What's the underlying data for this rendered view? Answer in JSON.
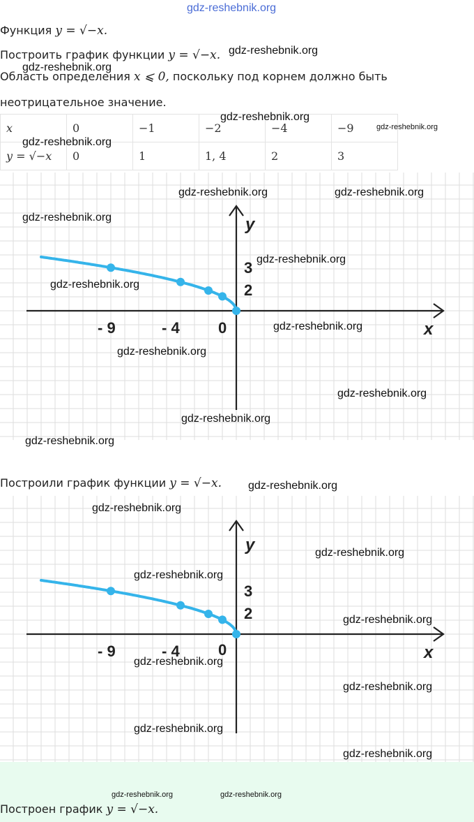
{
  "header_watermark": "gdz-reshebnik.org",
  "watermark": "gdz-reshebnik.org",
  "intro": {
    "func_label": "Функция",
    "func_formula": "y = √−x.",
    "task_label": "Построить график функции",
    "task_formula": "y = √−x.",
    "domain_label": "Область определения",
    "domain_formula": "x ⩽ 0,",
    "domain_reason": "поскольку под корнем должно быть",
    "domain_reason_2": "неотрицательное значение."
  },
  "table": {
    "x_header": "x",
    "y_header": "y = √−x",
    "x_values": [
      "0",
      "−1",
      "−2",
      "−4",
      "−9"
    ],
    "y_values": [
      "0",
      "1",
      "1, 4",
      "2",
      "3"
    ]
  },
  "graph": {
    "x_axis_label": "x",
    "y_axis_label": "y",
    "x_tick_labels": [
      "- 9",
      "- 4",
      "0"
    ],
    "y_tick_labels": [
      "3",
      "2"
    ],
    "line_color": "#35b4ea",
    "grid_color": "#dedede",
    "curve_points": [
      {
        "x": -14,
        "y": 3.74
      },
      {
        "x": -9,
        "y": 3
      },
      {
        "x": -4,
        "y": 2
      },
      {
        "x": -2,
        "y": 1.41
      },
      {
        "x": -1,
        "y": 1
      },
      {
        "x": 0,
        "y": 0
      }
    ],
    "marked_points": [
      {
        "x": -9,
        "y": 3
      },
      {
        "x": -4,
        "y": 2
      },
      {
        "x": -2,
        "y": 1.41
      },
      {
        "x": -1,
        "y": 1
      },
      {
        "x": 0,
        "y": 0
      }
    ]
  },
  "built": {
    "label": "Построили график функции",
    "formula": "y = √−x."
  },
  "footer": {
    "label": "Построен график",
    "formula": "y = √−x."
  }
}
